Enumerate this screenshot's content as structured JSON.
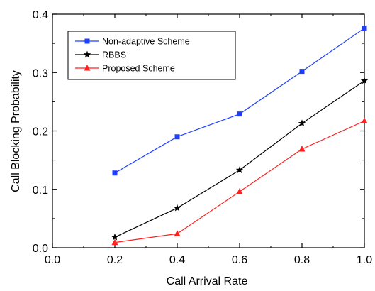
{
  "chart_data": {
    "type": "line",
    "title": "",
    "xlabel": "Call Arrival Rate",
    "ylabel": "Call Blocking Probability",
    "xlim": [
      0.0,
      1.0
    ],
    "ylim": [
      0.0,
      0.4
    ],
    "xticks": [
      0.0,
      0.2,
      0.4,
      0.6,
      0.8,
      1.0
    ],
    "yticks": [
      0.0,
      0.1,
      0.2,
      0.3,
      0.4
    ],
    "xtick_labels": [
      "0.0",
      "0.2",
      "0.4",
      "0.6",
      "0.8",
      "1.0"
    ],
    "ytick_labels": [
      "0.0",
      "0.1",
      "0.2",
      "0.3",
      "0.4"
    ],
    "grid": false,
    "legend_position": "top-left",
    "x": [
      0.2,
      0.4,
      0.6,
      0.8,
      1.0
    ],
    "series": [
      {
        "name": "Non-adaptive Scheme",
        "color": "#1f3fff",
        "marker": "square",
        "values": [
          0.128,
          0.19,
          0.229,
          0.302,
          0.376
        ]
      },
      {
        "name": "RBBS",
        "color": "#000000",
        "marker": "star",
        "values": [
          0.018,
          0.068,
          0.133,
          0.213,
          0.286
        ]
      },
      {
        "name": "Proposed Scheme",
        "color": "#ff2020",
        "marker": "triangle",
        "values": [
          0.009,
          0.024,
          0.096,
          0.169,
          0.217
        ]
      }
    ]
  }
}
